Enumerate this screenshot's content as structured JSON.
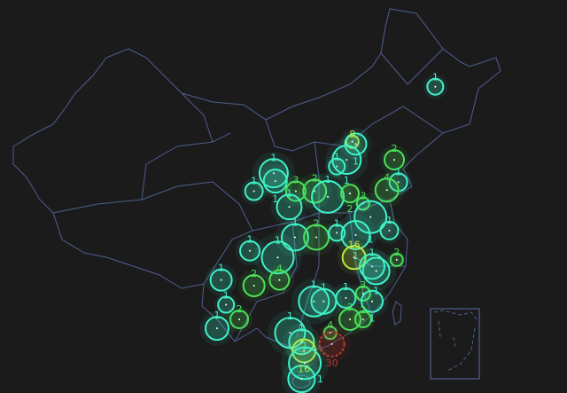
{
  "map": {
    "region": "China",
    "background_color": "#1b1b1b",
    "border_color": "#4f5f8f",
    "colors": {
      "low": "#3ff2c8",
      "mid": "#4be05a",
      "high": "#b8e83c",
      "max": "#c0392b"
    },
    "bubbles": [
      {
        "lon": 126.6,
        "lat": 45.8,
        "value": 1
      },
      {
        "lon": 106.9,
        "lat": 38.1,
        "value": 1
      },
      {
        "lon": 107.1,
        "lat": 37.4,
        "value": 1
      },
      {
        "lon": 104.5,
        "lat": 36.5,
        "value": 1
      },
      {
        "lon": 109.6,
        "lat": 36.5,
        "value": 3
      },
      {
        "lon": 108.8,
        "lat": 35.1,
        "value": 1
      },
      {
        "lon": 111.9,
        "lat": 36.5,
        "value": 2
      },
      {
        "lon": 113.5,
        "lat": 36.0,
        "value": 1
      },
      {
        "lon": 116.5,
        "lat": 40.9,
        "value": 8
      },
      {
        "lon": 116.9,
        "lat": 40.7,
        "value": 1
      },
      {
        "lon": 114.6,
        "lat": 38.7,
        "value": 1
      },
      {
        "lon": 115.8,
        "lat": 39.3,
        "value": 1
      },
      {
        "lon": 121.6,
        "lat": 39.3,
        "value": 2
      },
      {
        "lon": 122.1,
        "lat": 37.3,
        "value": 1
      },
      {
        "lon": 120.7,
        "lat": 36.6,
        "value": 4
      },
      {
        "lon": 116.2,
        "lat": 36.3,
        "value": 2
      },
      {
        "lon": 117.8,
        "lat": 35.4,
        "value": 3
      },
      {
        "lon": 118.7,
        "lat": 34.2,
        "value": 1
      },
      {
        "lon": 109.5,
        "lat": 32.4,
        "value": 1
      },
      {
        "lon": 112.1,
        "lat": 32.4,
        "value": 2
      },
      {
        "lon": 114.6,
        "lat": 32.8,
        "value": 1
      },
      {
        "lon": 116.9,
        "lat": 32.6,
        "value": 1
      },
      {
        "lon": 116.7,
        "lat": 30.6,
        "value": 16
      },
      {
        "lon": 121.0,
        "lat": 33.0,
        "value": 1
      },
      {
        "lon": 121.9,
        "lat": 30.4,
        "value": 2
      },
      {
        "lon": 118.9,
        "lat": 29.8,
        "value": 1
      },
      {
        "lon": 104.0,
        "lat": 31.2,
        "value": 1
      },
      {
        "lon": 107.4,
        "lat": 30.6,
        "value": 1
      },
      {
        "lon": 107.6,
        "lat": 28.6,
        "value": 4
      },
      {
        "lon": 100.5,
        "lat": 28.6,
        "value": 1
      },
      {
        "lon": 101.1,
        "lat": 26.4,
        "value": 1
      },
      {
        "lon": 102.7,
        "lat": 25.1,
        "value": 2
      },
      {
        "lon": 100.0,
        "lat": 24.3,
        "value": 1
      },
      {
        "lon": 104.5,
        "lat": 28.1,
        "value": 2
      },
      {
        "lon": 111.8,
        "lat": 26.7,
        "value": 1
      },
      {
        "lon": 113.0,
        "lat": 26.7,
        "value": 1
      },
      {
        "lon": 115.7,
        "lat": 27.0,
        "value": 1
      },
      {
        "lon": 117.8,
        "lat": 27.4,
        "value": 3
      },
      {
        "lon": 119.4,
        "lat": 29.4,
        "value": 1
      },
      {
        "lon": 118.9,
        "lat": 26.7,
        "value": 1
      },
      {
        "lon": 113.8,
        "lat": 23.9,
        "value": 4
      },
      {
        "lon": 116.2,
        "lat": 25.1,
        "value": 3
      },
      {
        "lon": 117.8,
        "lat": 25.1,
        "value": 2
      },
      {
        "lon": 114.0,
        "lat": 22.9,
        "value": 30
      },
      {
        "lon": 108.9,
        "lat": 23.9,
        "value": 1
      },
      {
        "lon": 110.3,
        "lat": 23.1,
        "value": 1
      },
      {
        "lon": 110.6,
        "lat": 22.3,
        "value": 16
      },
      {
        "lon": 110.7,
        "lat": 21.2,
        "value": 1
      },
      {
        "lon": 110.3,
        "lat": 19.8,
        "value": 1
      }
    ]
  }
}
